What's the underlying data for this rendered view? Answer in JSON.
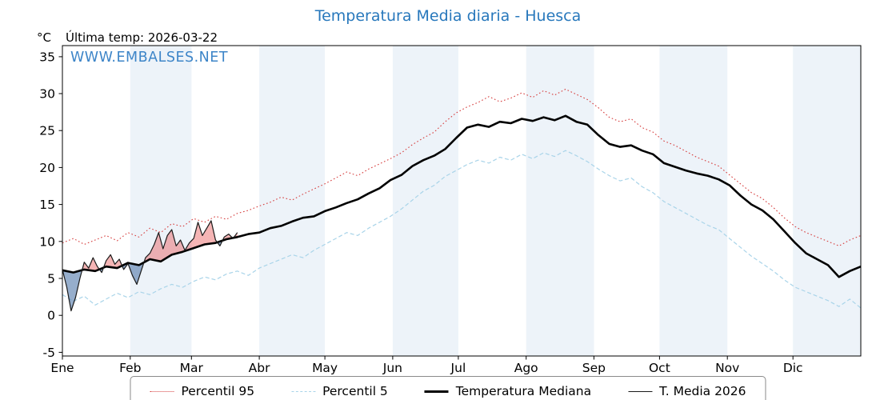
{
  "page": {
    "title": "Temperatura Media diaria - Huesca",
    "unit_label": "°C",
    "last_temp_label": "Última temp: 2026-03-22",
    "watermark": "WWW.EMBALSES.NET"
  },
  "colors": {
    "title": "#2878bc",
    "watermark": "#3d85c8",
    "band": "#edf3f9",
    "fill_above": "rgba(232,90,90,0.45)",
    "fill_below": "rgba(80,120,170,0.6)"
  },
  "legend": {
    "items": [
      {
        "label": "Percentil 95"
      },
      {
        "label": "Percentil 5"
      },
      {
        "label": "Temperatura Mediana"
      },
      {
        "label": "T. Media 2026"
      }
    ]
  },
  "chart_data": {
    "type": "line",
    "title": "Temperatura Media diaria - Huesca",
    "xlabel": "",
    "ylabel": "°C",
    "xlim": [
      1,
      366
    ],
    "ylim": [
      -5.5,
      36.5
    ],
    "yticks": [
      -5,
      0,
      5,
      10,
      15,
      20,
      25,
      30,
      35
    ],
    "grid": false,
    "legend_position": "bottom",
    "month_labels": [
      "Ene",
      "Feb",
      "Mar",
      "Abr",
      "May",
      "Jun",
      "Jul",
      "Ago",
      "Sep",
      "Oct",
      "Nov",
      "Dic"
    ],
    "month_start_days": [
      1,
      32,
      60,
      91,
      121,
      152,
      182,
      213,
      244,
      274,
      305,
      335
    ],
    "series": [
      {
        "name": "Percentil 95",
        "style": "dotted",
        "color": "#d63e3e",
        "width": 1.1,
        "dash": "1.6 2.8",
        "x_start": 1,
        "x_step": 5,
        "values": [
          9.8,
          10.4,
          9.6,
          10.2,
          10.8,
          10.1,
          11.2,
          10.6,
          11.8,
          11.2,
          12.4,
          12.0,
          13.1,
          12.6,
          13.4,
          13.0,
          13.8,
          14.2,
          14.8,
          15.3,
          16.0,
          15.6,
          16.4,
          17.1,
          17.8,
          18.6,
          19.4,
          18.9,
          19.8,
          20.5,
          21.2,
          22.0,
          23.1,
          24.0,
          24.8,
          26.2,
          27.4,
          28.2,
          28.8,
          29.6,
          28.9,
          29.4,
          30.1,
          29.5,
          30.4,
          29.8,
          30.6,
          29.9,
          29.2,
          28.1,
          26.8,
          26.2,
          26.6,
          25.4,
          24.8,
          23.6,
          23.0,
          22.2,
          21.4,
          20.8,
          20.2,
          19.0,
          17.8,
          16.6,
          15.8,
          14.6,
          13.2,
          12.0,
          11.2,
          10.6,
          10.0,
          9.4,
          10.2,
          10.8
        ]
      },
      {
        "name": "Percentil 5",
        "style": "dashed",
        "color": "#a9d4e9",
        "width": 1.2,
        "dash": "5 3",
        "x_start": 1,
        "x_step": 5,
        "values": [
          2.8,
          1.9,
          2.6,
          1.4,
          2.2,
          3.0,
          2.4,
          3.2,
          2.8,
          3.6,
          4.2,
          3.8,
          4.6,
          5.2,
          4.8,
          5.6,
          6.0,
          5.4,
          6.4,
          7.0,
          7.6,
          8.2,
          7.8,
          8.8,
          9.6,
          10.4,
          11.2,
          10.8,
          11.8,
          12.6,
          13.4,
          14.4,
          15.6,
          16.8,
          17.6,
          18.8,
          19.6,
          20.4,
          21.0,
          20.6,
          21.4,
          21.0,
          21.8,
          21.2,
          22.0,
          21.5,
          22.3,
          21.6,
          20.8,
          19.8,
          18.9,
          18.2,
          18.6,
          17.4,
          16.6,
          15.4,
          14.6,
          13.8,
          13.0,
          12.2,
          11.6,
          10.4,
          9.2,
          8.0,
          7.0,
          6.0,
          4.8,
          3.8,
          3.2,
          2.6,
          2.0,
          1.2,
          2.2,
          1.0
        ]
      },
      {
        "name": "Temperatura Mediana",
        "style": "solid-thick",
        "color": "#000000",
        "width": 2.6,
        "dash": null,
        "x_start": 1,
        "x_step": 5,
        "values": [
          6.1,
          5.8,
          6.2,
          6.0,
          6.6,
          6.4,
          7.1,
          6.8,
          7.6,
          7.3,
          8.2,
          8.6,
          9.1,
          9.6,
          9.8,
          10.3,
          10.6,
          11.0,
          11.2,
          11.8,
          12.1,
          12.7,
          13.2,
          13.4,
          14.1,
          14.6,
          15.2,
          15.7,
          16.5,
          17.2,
          18.3,
          19.0,
          20.2,
          21.0,
          21.6,
          22.5,
          24.0,
          25.4,
          25.8,
          25.5,
          26.2,
          26.0,
          26.6,
          26.3,
          26.8,
          26.4,
          27.0,
          26.2,
          25.8,
          24.4,
          23.2,
          22.8,
          23.0,
          22.3,
          21.8,
          20.6,
          20.1,
          19.6,
          19.2,
          18.9,
          18.4,
          17.6,
          16.2,
          15.0,
          14.2,
          13.0,
          11.4,
          9.8,
          8.4,
          7.6,
          6.8,
          5.2,
          6.0,
          6.6
        ]
      },
      {
        "name": "T. Media 2026",
        "style": "solid-thin",
        "color": "#1a1a1a",
        "width": 1.2,
        "dash": null,
        "x_start": 1,
        "x_step": 2,
        "values": [
          6.2,
          3.8,
          0.6,
          2.4,
          5.0,
          7.2,
          6.4,
          7.8,
          6.6,
          5.8,
          7.4,
          8.2,
          6.9,
          7.6,
          6.2,
          7.0,
          5.4,
          4.2,
          6.0,
          7.8,
          8.4,
          9.6,
          11.2,
          9.0,
          10.8,
          11.6,
          9.4,
          10.2,
          8.8,
          9.8,
          10.4,
          12.6,
          10.8,
          11.8,
          12.8,
          10.2,
          9.4,
          10.6,
          11.0,
          10.4,
          11.2
        ]
      }
    ],
    "fill_between": {
      "between": [
        "T. Media 2026",
        "Temperatura Mediana"
      ],
      "above_color": "rgba(232,90,90,0.45)",
      "below_color": "rgba(80,120,170,0.6)"
    }
  }
}
